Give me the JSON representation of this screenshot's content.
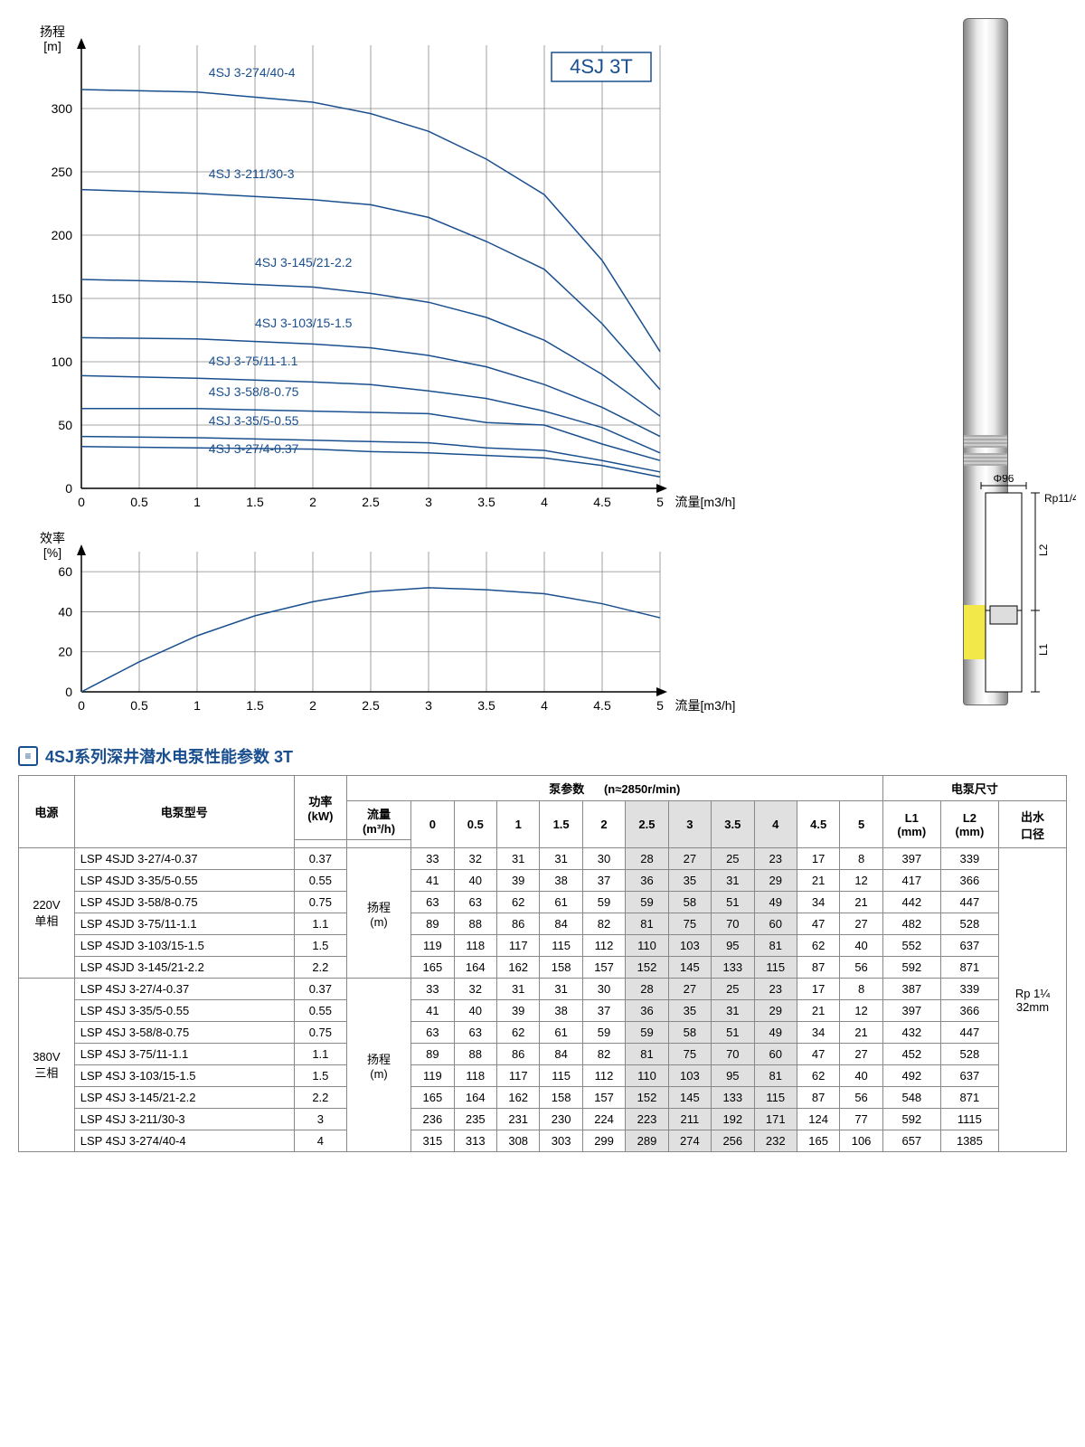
{
  "chart_badge": "4SJ 3T",
  "head_chart": {
    "type": "line",
    "ylabel_lines": [
      "扬程",
      "[m]"
    ],
    "xlabel": "流量[m3/h]",
    "xlim": [
      0,
      5
    ],
    "ylim": [
      0,
      350
    ],
    "xtick_step": 0.5,
    "ytick_step": 50,
    "xtick_labels": [
      "0",
      "0.5",
      "1",
      "1.5",
      "2",
      "2.5",
      "3",
      "3.5",
      "4",
      "4.5",
      "5"
    ],
    "ytick_labels": [
      "0",
      "50",
      "100",
      "150",
      "200",
      "250",
      "300"
    ],
    "grid_color": "#888",
    "line_color": "#1a4f8f",
    "line_width": 1.5,
    "background_color": "#ffffff",
    "series": [
      {
        "label": "4SJ 3-274/40-4",
        "label_x": 1.1,
        "label_y": 325,
        "points": [
          [
            0,
            315
          ],
          [
            1,
            313
          ],
          [
            2,
            305
          ],
          [
            2.5,
            296
          ],
          [
            3,
            282
          ],
          [
            3.5,
            260
          ],
          [
            4,
            232
          ],
          [
            4.5,
            180
          ],
          [
            5,
            108
          ]
        ]
      },
      {
        "label": "4SJ 3-211/30-3",
        "label_x": 1.1,
        "label_y": 245,
        "points": [
          [
            0,
            236
          ],
          [
            1,
            233
          ],
          [
            2,
            228
          ],
          [
            2.5,
            224
          ],
          [
            3,
            214
          ],
          [
            3.5,
            195
          ],
          [
            4,
            173
          ],
          [
            4.5,
            130
          ],
          [
            5,
            78
          ]
        ]
      },
      {
        "label": "4SJ 3-145/21-2.2",
        "label_x": 1.5,
        "label_y": 175,
        "points": [
          [
            0,
            165
          ],
          [
            1,
            163
          ],
          [
            2,
            159
          ],
          [
            2.5,
            154
          ],
          [
            3,
            147
          ],
          [
            3.5,
            135
          ],
          [
            4,
            117
          ],
          [
            4.5,
            90
          ],
          [
            5,
            57
          ]
        ]
      },
      {
        "label": "4SJ 3-103/15-1.5",
        "label_x": 1.5,
        "label_y": 127,
        "points": [
          [
            0,
            119
          ],
          [
            1,
            118
          ],
          [
            2,
            114
          ],
          [
            2.5,
            111
          ],
          [
            3,
            105
          ],
          [
            3.5,
            96
          ],
          [
            4,
            82
          ],
          [
            4.5,
            64
          ],
          [
            5,
            41
          ]
        ]
      },
      {
        "label": "4SJ 3-75/11-1.1",
        "label_x": 1.1,
        "label_y": 97,
        "points": [
          [
            0,
            89
          ],
          [
            1,
            87
          ],
          [
            2,
            84
          ],
          [
            2.5,
            82
          ],
          [
            3,
            77
          ],
          [
            3.5,
            71
          ],
          [
            4,
            61
          ],
          [
            4.5,
            48
          ],
          [
            5,
            28
          ]
        ]
      },
      {
        "label": "4SJ 3-58/8-0.75",
        "label_x": 1.1,
        "label_y": 73,
        "points": [
          [
            0,
            63
          ],
          [
            1,
            63
          ],
          [
            2,
            61
          ],
          [
            2.5,
            60
          ],
          [
            3,
            59
          ],
          [
            3.5,
            52
          ],
          [
            4,
            50
          ],
          [
            4.5,
            35
          ],
          [
            5,
            22
          ]
        ]
      },
      {
        "label": "4SJ 3-35/5-0.55",
        "label_x": 1.1,
        "label_y": 50,
        "points": [
          [
            0,
            41
          ],
          [
            1,
            40
          ],
          [
            2,
            38
          ],
          [
            2.5,
            37
          ],
          [
            3,
            36
          ],
          [
            3.5,
            32
          ],
          [
            4,
            30
          ],
          [
            4.5,
            22
          ],
          [
            5,
            13
          ]
        ]
      },
      {
        "label": "4SJ 3-27/4-0.37",
        "label_x": 1.1,
        "label_y": 28,
        "points": [
          [
            0,
            33
          ],
          [
            1,
            32
          ],
          [
            2,
            31
          ],
          [
            2.5,
            29
          ],
          [
            3,
            28
          ],
          [
            3.5,
            26
          ],
          [
            4,
            24
          ],
          [
            4.5,
            18
          ],
          [
            5,
            9
          ]
        ]
      }
    ]
  },
  "eff_chart": {
    "type": "line",
    "ylabel_lines": [
      "效率",
      "[%]"
    ],
    "xlabel": "流量[m3/h]",
    "xlim": [
      0,
      5
    ],
    "ylim": [
      0,
      70
    ],
    "xtick_step": 0.5,
    "ytick_step": 20,
    "xtick_labels": [
      "0",
      "0.5",
      "1",
      "1.5",
      "2",
      "2.5",
      "3",
      "3.5",
      "4",
      "4.5",
      "5"
    ],
    "ytick_labels": [
      "0",
      "20",
      "40",
      "60"
    ],
    "grid_color": "#888",
    "line_color": "#1a4f8f",
    "line_width": 1.5,
    "points": [
      [
        0,
        0
      ],
      [
        0.5,
        15
      ],
      [
        1,
        28
      ],
      [
        1.5,
        38
      ],
      [
        2,
        45
      ],
      [
        2.5,
        50
      ],
      [
        3,
        52
      ],
      [
        3.5,
        51
      ],
      [
        4,
        49
      ],
      [
        4.5,
        44
      ],
      [
        5,
        37
      ]
    ]
  },
  "diagram": {
    "phi_label": "Φ96",
    "rp_label": "Rp11/4",
    "l1_label": "L1",
    "l2_label": "L2"
  },
  "section_title": "4SJ系列深井潜水电泵性能参数    3T",
  "table": {
    "header": {
      "power_source": "电源",
      "model": "电泵型号",
      "power": "功率",
      "power_unit": "(kW)",
      "pump_params": "泵参数",
      "rpm": "(n≈2850r/min)",
      "dimensions": "电泵尺寸",
      "flow": "流量",
      "flow_unit": "(m³/h)",
      "head": "扬程",
      "head_unit": "(m)",
      "l1": "L1",
      "l2": "L2",
      "mm": "(mm)",
      "outlet": "出水",
      "outlet2": "口径"
    },
    "flow_cols": [
      "0",
      "0.5",
      "1",
      "1.5",
      "2",
      "2.5",
      "3",
      "3.5",
      "4",
      "4.5",
      "5"
    ],
    "highlight_cols": [
      5,
      6,
      7,
      8
    ],
    "groups": [
      {
        "source": "220V\n单相",
        "rows": [
          {
            "model": "LSP 4SJD 3-27/4-0.37",
            "kw": "0.37",
            "vals": [
              "33",
              "32",
              "31",
              "31",
              "30",
              "28",
              "27",
              "25",
              "23",
              "17",
              "8"
            ],
            "l1": "397",
            "l2": "339"
          },
          {
            "model": "LSP 4SJD 3-35/5-0.55",
            "kw": "0.55",
            "vals": [
              "41",
              "40",
              "39",
              "38",
              "37",
              "36",
              "35",
              "31",
              "29",
              "21",
              "12"
            ],
            "l1": "417",
            "l2": "366"
          },
          {
            "model": "LSP 4SJD 3-58/8-0.75",
            "kw": "0.75",
            "vals": [
              "63",
              "63",
              "62",
              "61",
              "59",
              "59",
              "58",
              "51",
              "49",
              "34",
              "21"
            ],
            "l1": "442",
            "l2": "447"
          },
          {
            "model": "LSP 4SJD 3-75/11-1.1",
            "kw": "1.1",
            "vals": [
              "89",
              "88",
              "86",
              "84",
              "82",
              "81",
              "75",
              "70",
              "60",
              "47",
              "27"
            ],
            "l1": "482",
            "l2": "528"
          },
          {
            "model": "LSP 4SJD 3-103/15-1.5",
            "kw": "1.5",
            "vals": [
              "119",
              "118",
              "117",
              "115",
              "112",
              "110",
              "103",
              "95",
              "81",
              "62",
              "40"
            ],
            "l1": "552",
            "l2": "637"
          },
          {
            "model": "LSP 4SJD 3-145/21-2.2",
            "kw": "2.2",
            "vals": [
              "165",
              "164",
              "162",
              "158",
              "157",
              "152",
              "145",
              "133",
              "115",
              "87",
              "56"
            ],
            "l1": "592",
            "l2": "871"
          }
        ]
      },
      {
        "source": "380V\n三相",
        "rows": [
          {
            "model": "LSP 4SJ 3-27/4-0.37",
            "kw": "0.37",
            "vals": [
              "33",
              "32",
              "31",
              "31",
              "30",
              "28",
              "27",
              "25",
              "23",
              "17",
              "8"
            ],
            "l1": "387",
            "l2": "339"
          },
          {
            "model": "LSP 4SJ 3-35/5-0.55",
            "kw": "0.55",
            "vals": [
              "41",
              "40",
              "39",
              "38",
              "37",
              "36",
              "35",
              "31",
              "29",
              "21",
              "12"
            ],
            "l1": "397",
            "l2": "366"
          },
          {
            "model": "LSP 4SJ 3-58/8-0.75",
            "kw": "0.75",
            "vals": [
              "63",
              "63",
              "62",
              "61",
              "59",
              "59",
              "58",
              "51",
              "49",
              "34",
              "21"
            ],
            "l1": "432",
            "l2": "447"
          },
          {
            "model": "LSP 4SJ 3-75/11-1.1",
            "kw": "1.1",
            "vals": [
              "89",
              "88",
              "86",
              "84",
              "82",
              "81",
              "75",
              "70",
              "60",
              "47",
              "27"
            ],
            "l1": "452",
            "l2": "528"
          },
          {
            "model": "LSP 4SJ 3-103/15-1.5",
            "kw": "1.5",
            "vals": [
              "119",
              "118",
              "117",
              "115",
              "112",
              "110",
              "103",
              "95",
              "81",
              "62",
              "40"
            ],
            "l1": "492",
            "l2": "637"
          },
          {
            "model": "LSP 4SJ 3-145/21-2.2",
            "kw": "2.2",
            "vals": [
              "165",
              "164",
              "162",
              "158",
              "157",
              "152",
              "145",
              "133",
              "115",
              "87",
              "56"
            ],
            "l1": "548",
            "l2": "871"
          },
          {
            "model": "LSP 4SJ 3-211/30-3",
            "kw": "3",
            "vals": [
              "236",
              "235",
              "231",
              "230",
              "224",
              "223",
              "211",
              "192",
              "171",
              "124",
              "77"
            ],
            "l1": "592",
            "l2": "1115"
          },
          {
            "model": "LSP 4SJ 3-274/40-4",
            "kw": "4",
            "vals": [
              "315",
              "313",
              "308",
              "303",
              "299",
              "289",
              "274",
              "256",
              "232",
              "165",
              "106"
            ],
            "l1": "657",
            "l2": "1385"
          }
        ]
      }
    ],
    "outlet_value": "Rp 1¼\n32mm"
  }
}
